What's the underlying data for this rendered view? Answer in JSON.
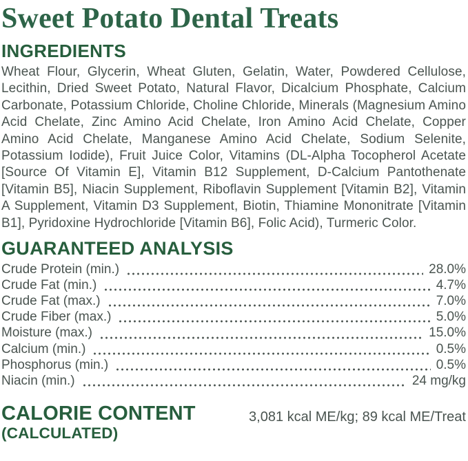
{
  "title": "Sweet Potato Dental Treats",
  "colors": {
    "title_green": "#2d6448",
    "heading_green": "#275e3d",
    "body_text": "#4a5450",
    "background": "#ffffff"
  },
  "ingredients": {
    "heading": "INGREDIENTS",
    "text": "Wheat Flour, Glycerin, Wheat Gluten, Gelatin, Water, Powdered Cellulose, Lecithin, Dried Sweet Potato, Natural Flavor, Dicalcium Phosphate, Calcium Carbonate, Potassium Chloride, Choline Chloride, Minerals (Magnesium Amino Acid Chelate, Zinc Amino Acid Chelate, Iron Amino Acid Chelate, Copper Amino Acid Chelate, Manganese Amino Acid Chelate, Sodium Selenite, Potassium Iodide), Fruit Juice Color, Vitamins (DL-Alpha Tocopherol Acetate [Source Of Vitamin E], Vitamin B12 Supplement, D-Calcium Pantothenate [Vitamin B5], Niacin Supplement, Riboflavin Supplement [Vitamin B2], Vitamin A Supplement, Vitamin D3 Supplement, Biotin, Thiamine Mononitrate [Vitamin B1], Pyridoxine Hydrochloride [Vitamin B6], Folic Acid), Turmeric Color."
  },
  "guaranteed_analysis": {
    "heading": "GUARANTEED ANALYSIS",
    "rows": [
      {
        "label": "Crude Protein (min.)",
        "value": "28.0%"
      },
      {
        "label": "Crude Fat (min.)",
        "value": "4.7%"
      },
      {
        "label": "Crude Fat (max.)",
        "value": "7.0%"
      },
      {
        "label": "Crude Fiber (max.)",
        "value": "5.0%"
      },
      {
        "label": "Moisture (max.)",
        "value": "15.0%"
      },
      {
        "label": "Calcium (min.)",
        "value": "0.5%"
      },
      {
        "label": "Phosphorus (min.)",
        "value": "0.5%"
      },
      {
        "label": "Niacin (min.)",
        "value": "24 mg/kg"
      }
    ]
  },
  "calorie_content": {
    "heading_line1": "CALORIE CONTENT",
    "heading_line2": "(CALCULATED)",
    "value": "3,081 kcal ME/kg; 89 kcal ME/Treat"
  }
}
